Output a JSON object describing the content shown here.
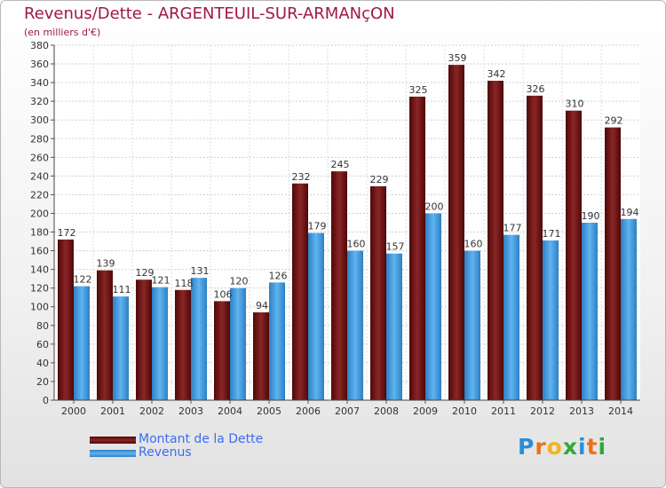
{
  "chart_data": {
    "type": "bar",
    "title": "Revenus/Dette - ARGENTEUIL-SUR-ARMANçON",
    "subtitle": "(en milliers d'€)",
    "categories": [
      "2000",
      "2001",
      "2002",
      "2003",
      "2004",
      "2005",
      "2006",
      "2007",
      "2008",
      "2009",
      "2010",
      "2011",
      "2012",
      "2013",
      "2014"
    ],
    "series": [
      {
        "name": "Montant de la Dette",
        "color": "#7a1a1a",
        "values": [
          172,
          139,
          129,
          118,
          106,
          94,
          232,
          245,
          229,
          325,
          359,
          342,
          326,
          310,
          292
        ]
      },
      {
        "name": "Revenus",
        "color": "#4da6e8",
        "values": [
          122,
          111,
          121,
          131,
          120,
          126,
          179,
          160,
          157,
          200,
          160,
          177,
          171,
          190,
          194
        ]
      }
    ],
    "ylim": [
      0,
      380
    ],
    "ytick_step": 20,
    "grid": true,
    "legend": "bottom-left"
  },
  "logo": {
    "text": "Proxiti",
    "letters": [
      "P",
      "r",
      "o",
      "x",
      "i",
      "t",
      "i"
    ],
    "colors": [
      "#2a8fd8",
      "#e8731a",
      "#f0b419",
      "#2fa83a",
      "#2a8fd8",
      "#e8731a",
      "#2fa83a"
    ]
  }
}
